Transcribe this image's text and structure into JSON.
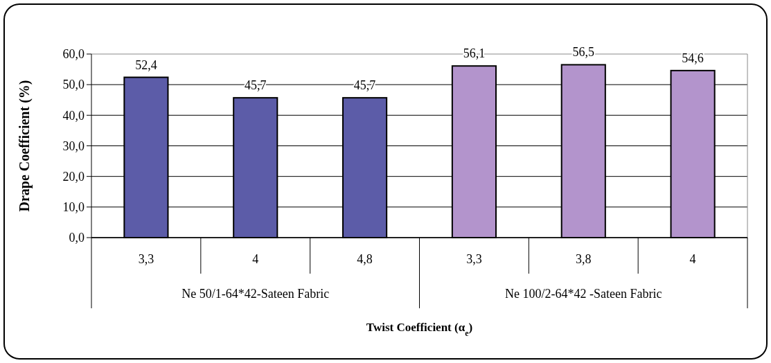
{
  "chart_data": {
    "type": "bar",
    "xlabel": "Twist Coefficient (α$_{e}$)",
    "ylabel": "Drape Coefficient (%)",
    "categories": [
      "3,3",
      "4",
      "4,8",
      "3,3",
      "3,8",
      "4"
    ],
    "values": [
      52.4,
      45.7,
      45.7,
      56.1,
      56.5,
      54.6
    ],
    "colors": [
      "#5c5ca8",
      "#5c5ca8",
      "#5c5ca8",
      "#b394cc",
      "#b394cc",
      "#b394cc"
    ],
    "value_labels": [
      "52,4",
      "45,7",
      "45,7",
      "56,1",
      "56,5",
      "54,6"
    ],
    "annotations": [
      "Ne 50/1-64*42-Sateen Fabric",
      "Ne 100/2-64*42 -Sateen Fabric"
    ],
    "ylim": [
      0,
      60
    ],
    "yticks": [
      {
        "value": 0,
        "label": "0,0"
      },
      {
        "value": 10,
        "label": "10,0"
      },
      {
        "value": 20,
        "label": "20,0"
      },
      {
        "value": 30,
        "label": "30,0"
      },
      {
        "value": 40,
        "label": "40,0"
      },
      {
        "value": 50,
        "label": "50,0"
      },
      {
        "value": 60,
        "label": "60,0"
      }
    ],
    "grid": "y"
  }
}
